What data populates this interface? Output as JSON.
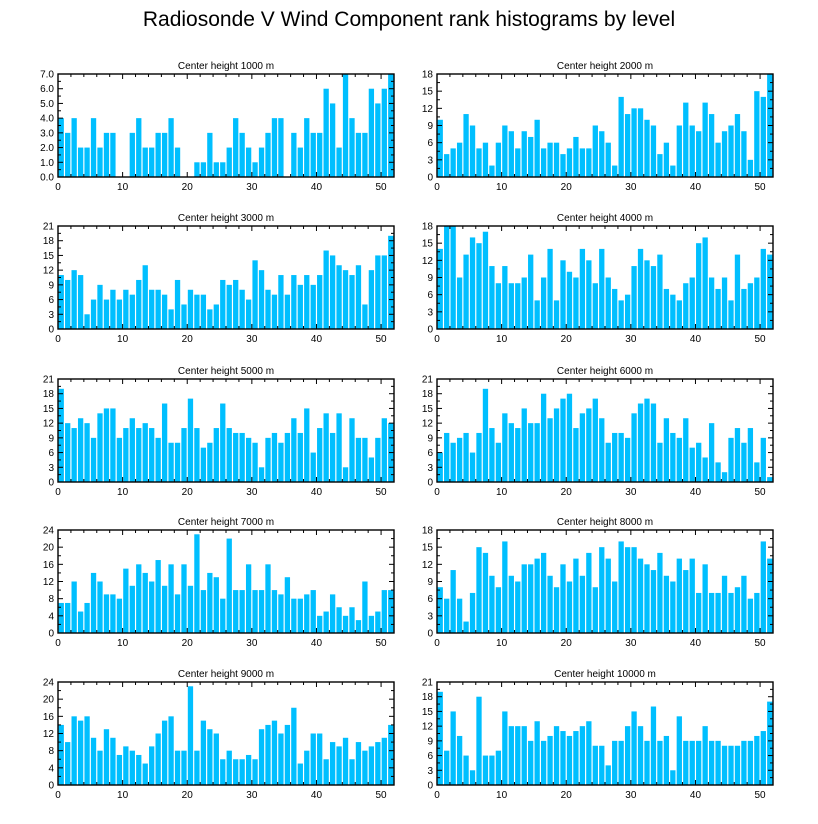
{
  "title": "Radiosonde V Wind Component rank histograms by level",
  "bar_color": "#00BFFF",
  "chart_data": [
    {
      "type": "bar",
      "title": "Center height 1000 m",
      "ylim": [
        0,
        7
      ],
      "yticks": [
        "0.0",
        "1.0",
        "2.0",
        "3.0",
        "4.0",
        "5.0",
        "6.0",
        "7.0"
      ],
      "xticks": [
        "0",
        "10",
        "20",
        "30",
        "40",
        "50"
      ],
      "values": [
        4,
        3,
        4,
        2,
        2,
        4,
        2,
        3,
        3,
        0,
        0,
        3,
        4,
        2,
        2,
        3,
        3,
        4,
        2,
        0,
        0,
        1,
        1,
        3,
        1,
        1,
        2,
        4,
        3,
        2,
        1,
        2,
        3,
        4,
        4,
        0,
        3,
        2,
        4,
        3,
        3,
        6,
        5,
        2,
        7,
        4,
        3,
        3,
        6,
        5,
        6,
        7
      ]
    },
    {
      "type": "bar",
      "title": "Center height 2000 m",
      "ylim": [
        0,
        18
      ],
      "yticks": [
        "0",
        "3",
        "6",
        "9",
        "12",
        "15",
        "18"
      ],
      "xticks": [
        "0",
        "10",
        "20",
        "30",
        "40",
        "50"
      ],
      "values": [
        10,
        4,
        5,
        6,
        11,
        9,
        5,
        6,
        2,
        6,
        9,
        8,
        5,
        8,
        7,
        10,
        5,
        6,
        6,
        4,
        5,
        7,
        5,
        5,
        9,
        8,
        6,
        2,
        14,
        11,
        12,
        12,
        10,
        9,
        4,
        6,
        2,
        9,
        13,
        9,
        8,
        13,
        11,
        6,
        8,
        9,
        11,
        8,
        3,
        15,
        14,
        18
      ]
    },
    {
      "type": "bar",
      "title": "Center height 3000 m",
      "ylim": [
        0,
        21
      ],
      "yticks": [
        "0",
        "3",
        "6",
        "9",
        "12",
        "15",
        "18",
        "21"
      ],
      "xticks": [
        "0",
        "10",
        "20",
        "30",
        "40",
        "50"
      ],
      "values": [
        11,
        10,
        12,
        11,
        3,
        6,
        9,
        6,
        8,
        6,
        8,
        7,
        10,
        13,
        8,
        8,
        7,
        4,
        10,
        5,
        8,
        7,
        7,
        4,
        5,
        10,
        9,
        10,
        8,
        6,
        14,
        12,
        8,
        7,
        11,
        7,
        11,
        9,
        11,
        9,
        11,
        16,
        15,
        13,
        12,
        11,
        13,
        5,
        12,
        15,
        15,
        19
      ]
    },
    {
      "type": "bar",
      "title": "Center height 4000 m",
      "ylim": [
        0,
        18
      ],
      "yticks": [
        "0",
        "3",
        "6",
        "9",
        "12",
        "15",
        "18"
      ],
      "xticks": [
        "0",
        "10",
        "20",
        "30",
        "40",
        "50"
      ],
      "values": [
        14,
        18,
        18,
        9,
        13,
        16,
        15,
        17,
        11,
        8,
        11,
        8,
        8,
        9,
        13,
        5,
        9,
        14,
        5,
        12,
        10,
        9,
        14,
        12,
        8,
        14,
        9,
        7,
        5,
        6,
        11,
        14,
        12,
        11,
        13,
        7,
        6,
        5,
        8,
        9,
        15,
        16,
        9,
        7,
        9,
        5,
        13,
        7,
        8,
        9,
        14,
        13
      ]
    },
    {
      "type": "bar",
      "title": "Center height 5000 m",
      "ylim": [
        0,
        21
      ],
      "yticks": [
        "0",
        "3",
        "6",
        "9",
        "12",
        "15",
        "18",
        "21"
      ],
      "xticks": [
        "0",
        "10",
        "20",
        "30",
        "40",
        "50"
      ],
      "values": [
        19,
        12,
        11,
        13,
        12,
        9,
        14,
        15,
        15,
        9,
        11,
        13,
        11,
        12,
        11,
        9,
        16,
        8,
        8,
        11,
        17,
        11,
        7,
        8,
        11,
        16,
        11,
        10,
        10,
        9,
        8,
        3,
        9,
        10,
        8,
        10,
        13,
        10,
        15,
        6,
        11,
        14,
        10,
        14,
        3,
        13,
        9,
        9,
        5,
        9,
        13,
        12
      ]
    },
    {
      "type": "bar",
      "title": "Center height 6000 m",
      "ylim": [
        0,
        21
      ],
      "yticks": [
        "0",
        "3",
        "6",
        "9",
        "12",
        "15",
        "18",
        "21"
      ],
      "xticks": [
        "0",
        "10",
        "20",
        "30",
        "40",
        "50"
      ],
      "values": [
        6,
        10,
        8,
        9,
        10,
        6,
        10,
        19,
        11,
        8,
        14,
        12,
        11,
        15,
        12,
        12,
        18,
        13,
        15,
        17,
        18,
        11,
        14,
        15,
        17,
        13,
        8,
        10,
        10,
        9,
        14,
        16,
        17,
        16,
        8,
        13,
        10,
        9,
        13,
        7,
        8,
        5,
        12,
        4,
        2,
        9,
        11,
        8,
        11,
        4,
        9,
        1
      ]
    },
    {
      "type": "bar",
      "title": "Center height 7000 m",
      "ylim": [
        0,
        24
      ],
      "yticks": [
        "0",
        "4",
        "8",
        "12",
        "16",
        "20",
        "24"
      ],
      "xticks": [
        "0",
        "10",
        "20",
        "30",
        "40",
        "50"
      ],
      "values": [
        7,
        7,
        12,
        5,
        7,
        14,
        12,
        9,
        9,
        8,
        15,
        11,
        16,
        14,
        12,
        17,
        11,
        16,
        9,
        16,
        11,
        23,
        10,
        14,
        13,
        8,
        22,
        10,
        10,
        16,
        10,
        10,
        16,
        10,
        9,
        13,
        8,
        8,
        9,
        10,
        4,
        5,
        9,
        6,
        4,
        6,
        3,
        12,
        4,
        5,
        10,
        10
      ]
    },
    {
      "type": "bar",
      "title": "Center height 8000 m",
      "ylim": [
        0,
        18
      ],
      "yticks": [
        "0",
        "3",
        "6",
        "9",
        "12",
        "15",
        "18"
      ],
      "xticks": [
        "0",
        "10",
        "20",
        "30",
        "40",
        "50"
      ],
      "values": [
        8,
        6,
        11,
        6,
        2,
        7,
        15,
        14,
        10,
        8,
        16,
        10,
        9,
        12,
        12,
        13,
        14,
        10,
        8,
        12,
        9,
        13,
        10,
        14,
        8,
        15,
        13,
        9,
        16,
        15,
        15,
        13,
        12,
        11,
        14,
        10,
        9,
        13,
        11,
        13,
        7,
        12,
        7,
        7,
        10,
        7,
        8,
        10,
        6,
        7,
        16,
        13
      ]
    },
    {
      "type": "bar",
      "title": "Center height 9000 m",
      "ylim": [
        0,
        24
      ],
      "yticks": [
        "0",
        "4",
        "8",
        "12",
        "16",
        "20",
        "24"
      ],
      "xticks": [
        "0",
        "10",
        "20",
        "30",
        "40",
        "50"
      ],
      "values": [
        14,
        10,
        16,
        15,
        16,
        11,
        8,
        13,
        11,
        7,
        9,
        8,
        7,
        5,
        9,
        12,
        15,
        16,
        8,
        8,
        23,
        8,
        15,
        13,
        12,
        6,
        8,
        6,
        6,
        7,
        6,
        13,
        14,
        15,
        12,
        14,
        18,
        5,
        8,
        12,
        12,
        6,
        10,
        9,
        11,
        6,
        10,
        8,
        9,
        10,
        11,
        14
      ]
    },
    {
      "type": "bar",
      "title": "Center height 10000 m",
      "ylim": [
        0,
        21
      ],
      "yticks": [
        "0",
        "3",
        "6",
        "9",
        "12",
        "15",
        "18",
        "21"
      ],
      "xticks": [
        "0",
        "10",
        "20",
        "30",
        "40",
        "50"
      ],
      "values": [
        19,
        7,
        15,
        10,
        6,
        3,
        18,
        6,
        6,
        7,
        15,
        12,
        12,
        12,
        9,
        13,
        9,
        10,
        12,
        11,
        10,
        11,
        12,
        13,
        8,
        8,
        4,
        9,
        9,
        12,
        15,
        12,
        9,
        16,
        9,
        10,
        3,
        14,
        9,
        9,
        9,
        12,
        9,
        9,
        8,
        8,
        8,
        9,
        9,
        10,
        11,
        17
      ]
    }
  ]
}
